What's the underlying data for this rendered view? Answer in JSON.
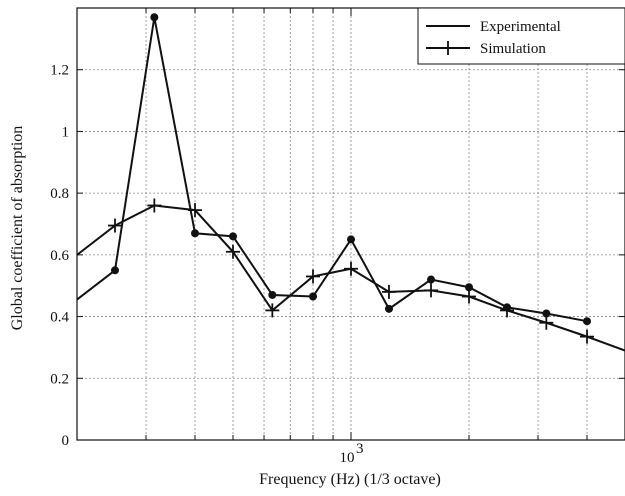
{
  "chart_data": {
    "type": "line",
    "xlabel": "Frequency (Hz) (1/3 octave)",
    "ylabel": "Global coefficient of absorption",
    "x_scale": "log",
    "xlim": [
      200,
      5000
    ],
    "ylim": [
      0,
      1.4
    ],
    "yticks": [
      0,
      0.2,
      0.4,
      0.6,
      0.8,
      1,
      1.2
    ],
    "ytick_labels": [
      "0",
      "0.2",
      "0.4",
      "0.6",
      "0.8",
      "1",
      "1.2"
    ],
    "xtick_major_label": "10",
    "xtick_major_exponent": "3",
    "grid": true,
    "legend_position": "top-right",
    "series": [
      {
        "name": "Experimental",
        "marker": "circle",
        "x": [
          250,
          315,
          400,
          500,
          630,
          800,
          1000,
          1250,
          1600,
          2000,
          2500,
          3150,
          4000
        ],
        "y": [
          0.55,
          1.37,
          0.67,
          0.66,
          0.47,
          0.465,
          0.65,
          0.425,
          0.52,
          0.495,
          0.43,
          0.41,
          0.385
        ],
        "extend_left": 0.455
      },
      {
        "name": "Simulation",
        "marker": "plus",
        "x": [
          250,
          315,
          400,
          500,
          630,
          800,
          1000,
          1250,
          1600,
          2000,
          2500,
          3150,
          4000
        ],
        "y": [
          0.695,
          0.76,
          0.745,
          0.61,
          0.42,
          0.53,
          0.555,
          0.48,
          0.485,
          0.465,
          0.42,
          0.38,
          0.335
        ],
        "extend_left": 0.6,
        "extend_right": 0.29
      }
    ]
  }
}
